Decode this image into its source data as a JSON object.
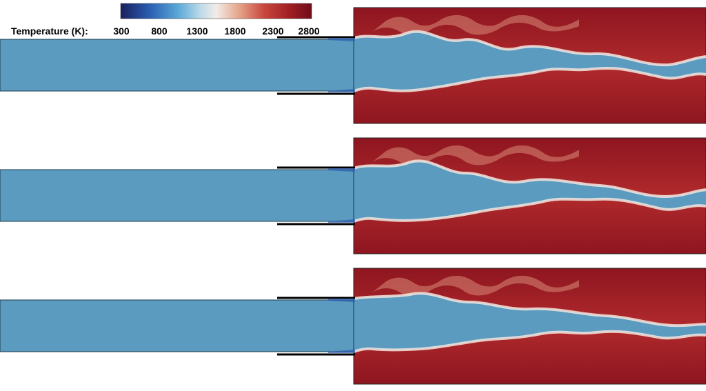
{
  "colorbar": {
    "label": "Temperature (K):",
    "ticks": [
      "300",
      "800",
      "1300",
      "1800",
      "2300",
      "2800"
    ],
    "stops": [
      "#1a1f5e",
      "#2a5db0",
      "#5aa8d8",
      "#bfdbe9",
      "#f2ece8",
      "#e6a48a",
      "#c8473d",
      "#a31f24",
      "#6e0d1b"
    ]
  },
  "colors": {
    "inlet_fluid": "#5a9bbf",
    "hot_gas": "#a3202a",
    "wall": "#000000"
  }
}
